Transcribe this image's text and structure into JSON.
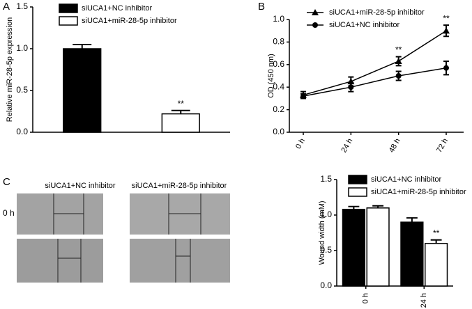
{
  "chart_data": [
    {
      "type": "bar",
      "label": "A",
      "ylabel": "Relative miR-28-5p expression",
      "categories": [
        null,
        null
      ],
      "series": [
        {
          "name": "siUCA1+NC inhibitor",
          "color": "#000000",
          "values": [
            1.0,
            null
          ],
          "errors": [
            0.05,
            null
          ],
          "significance": [
            null,
            null
          ]
        },
        {
          "name": "siUCA1+miR-28-5p inhibitor",
          "color": "#ffffff",
          "values": [
            null,
            0.22
          ],
          "errors": [
            null,
            0.04
          ],
          "significance": [
            null,
            "**"
          ]
        }
      ],
      "ylim": [
        0,
        1.5
      ],
      "yticks": [
        {
          "value": 0,
          "label": "0.0"
        },
        0.5,
        {
          "value": 1,
          "label": "1.0"
        },
        1.5
      ]
    },
    {
      "type": "line",
      "label": "B",
      "ylabel": "OD (450 nm)",
      "categories": [
        "0 h",
        "24 h",
        "48 h",
        "72 h"
      ],
      "series": [
        {
          "name": "siUCA1+miR-28-5p inhibitor",
          "color": "#000000",
          "marker": "triangle",
          "values": [
            0.33,
            0.45,
            0.63,
            0.9
          ],
          "errors": [
            0.03,
            0.04,
            0.04,
            0.05
          ],
          "significance": [
            null,
            null,
            "**",
            "**"
          ]
        },
        {
          "name": "siUCA1+NC inhibitor",
          "color": "#000000",
          "marker": "circle",
          "values": [
            0.32,
            0.4,
            0.5,
            0.57
          ],
          "errors": [
            0.02,
            0.04,
            0.04,
            0.06
          ],
          "significance": [
            null,
            null,
            null,
            null
          ]
        }
      ],
      "ylim": [
        0,
        1
      ],
      "yticks": [
        {
          "value": 0,
          "label": "0.0"
        },
        0.2,
        0.4,
        0.6,
        0.8,
        {
          "value": 1,
          "label": "1.0"
        }
      ]
    },
    {
      "type": "bar",
      "label": "C",
      "ylabel": "Wound width (mM)",
      "categories": [
        "0 h",
        "24 h"
      ],
      "series": [
        {
          "name": "siUCA1+NC inhibitor",
          "color": "#000000",
          "values": [
            1.08,
            0.9
          ],
          "errors": [
            0.04,
            0.06
          ],
          "significance": [
            null,
            null
          ]
        },
        {
          "name": "siUCA1+miR-28-5p inhibitor",
          "color": "#ffffff",
          "values": [
            1.1,
            0.6
          ],
          "errors": [
            0.03,
            0.05
          ],
          "significance": [
            null,
            "**"
          ]
        }
      ],
      "ylim": [
        0,
        1.5
      ],
      "yticks": [
        {
          "value": 0,
          "label": "0.0"
        },
        0.5,
        {
          "value": 1,
          "label": "1.0"
        },
        1.5
      ]
    }
  ],
  "micrographs": {
    "columns": [
      "siUCA1+NC inhibitor",
      "siUCA1+miR-28-5p inhibitor"
    ],
    "rows": [
      "0 h"
    ]
  }
}
